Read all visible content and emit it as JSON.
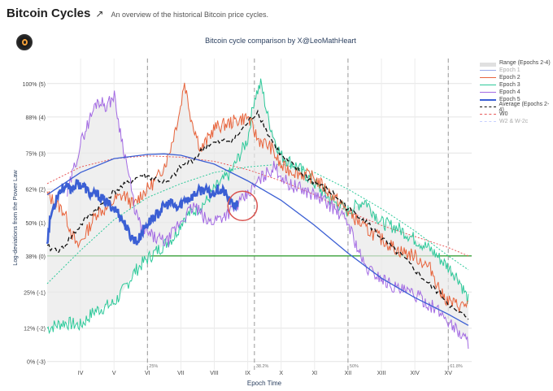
{
  "header": {
    "title": "Bitcoin Cycles",
    "subtitle": "An overview of the historical Bitcoin price cycles.",
    "share_icon": "arrow-up-right-icon"
  },
  "chart_data": {
    "type": "line",
    "title": "Bitcoin cycle comparison by X@LeoMathHeart",
    "xlabel": "Epoch Time",
    "ylabel": "Log-deviations from the Power Law",
    "y_ticks": [
      {
        "value": 0,
        "label": "0% (-3)"
      },
      {
        "value": 12,
        "label": "12% (-2)"
      },
      {
        "value": 25,
        "label": "25% (-1)"
      },
      {
        "value": 38,
        "label": "38% (0)"
      },
      {
        "value": 50,
        "label": "50% (1)"
      },
      {
        "value": 62,
        "label": "62% (2)"
      },
      {
        "value": 75,
        "label": "75% (3)"
      },
      {
        "value": 88,
        "label": "88% (4)"
      },
      {
        "value": 100,
        "label": "100% (5)"
      }
    ],
    "ylim": [
      -3,
      109
    ],
    "xlim": [
      3.0,
      15.7
    ],
    "x_ticks": [
      {
        "value": 4,
        "label": "IV"
      },
      {
        "value": 5,
        "label": "V"
      },
      {
        "value": 6,
        "label": "VI"
      },
      {
        "value": 7,
        "label": "VII"
      },
      {
        "value": 8,
        "label": "VIII"
      },
      {
        "value": 9,
        "label": "IX"
      },
      {
        "value": 10,
        "label": "X"
      },
      {
        "value": 11,
        "label": "XI"
      },
      {
        "value": 12,
        "label": "XII"
      },
      {
        "value": 13,
        "label": "XIII"
      },
      {
        "value": 14,
        "label": "XIV"
      },
      {
        "value": 15,
        "label": "XV"
      }
    ],
    "vlines": [
      {
        "x": 6.0,
        "label": "25%"
      },
      {
        "x": 9.2,
        "label": "38.2%"
      },
      {
        "x": 12.0,
        "label": "50%"
      },
      {
        "x": 15.0,
        "label": "61.8%"
      }
    ],
    "hline": {
      "y": 38,
      "color": "#3aa23a"
    },
    "legend": [
      "Range (Epochs 2-4)",
      "Epoch 1",
      "Epoch 2",
      "Epoch 3",
      "Epoch 4",
      "Epoch 5",
      "Average (Epochs 2-4)",
      "W0",
      "W2 & W-2c"
    ],
    "colors": {
      "epoch1": "#9aa8e8",
      "epoch2": "#e8643c",
      "epoch3": "#2ec99a",
      "epoch4": "#a36ae3",
      "epoch5": "#3b5fd4",
      "average": "#111111",
      "w0": "#e85a5a",
      "w2": "#2ec99a",
      "power_law": "#3b5fd4",
      "annotation_circle": "#d9534f",
      "range_fill": "#e8e8e8"
    },
    "series": [
      {
        "name": "Epoch 2",
        "x": [
          3.0,
          3.5,
          3.9,
          4.2,
          4.5,
          4.8,
          5.0,
          5.3,
          5.6,
          5.8,
          6.0,
          6.3,
          6.6,
          6.8,
          7.0,
          7.1,
          7.3,
          7.6,
          8.0,
          8.5,
          9.0,
          9.3,
          9.7,
          10.0,
          10.5,
          11.0,
          11.5,
          12.0,
          12.5,
          13.0,
          13.5,
          14.0,
          14.5,
          14.8,
          15.1,
          15.4,
          15.6
        ],
        "y": [
          60,
          54,
          41,
          47,
          54,
          55,
          58,
          60,
          56,
          60,
          62,
          66,
          73,
          82,
          92,
          101,
          88,
          76,
          84,
          86,
          88,
          80,
          77,
          70,
          68,
          66,
          60,
          54,
          48,
          44,
          40,
          38,
          33,
          24,
          21,
          20,
          21
        ]
      },
      {
        "name": "Epoch 3",
        "x": [
          3.0,
          3.5,
          4.0,
          4.4,
          4.8,
          5.0,
          5.3,
          5.6,
          5.9,
          6.2,
          6.5,
          6.8,
          7.1,
          7.5,
          7.8,
          8.0,
          8.5,
          9.0,
          9.2,
          9.4,
          9.6,
          9.8,
          10.0,
          10.5,
          11.0,
          11.5,
          12.0,
          12.5,
          13.0,
          13.5,
          14.0,
          14.5,
          15.0,
          15.3,
          15.6
        ],
        "y": [
          12,
          14,
          13,
          18,
          20,
          21,
          26,
          32,
          36,
          39,
          42,
          45,
          52,
          55,
          58,
          62,
          68,
          80,
          95,
          100,
          88,
          80,
          74,
          70,
          64,
          58,
          54,
          58,
          50,
          48,
          44,
          40,
          34,
          30,
          22
        ]
      },
      {
        "name": "Epoch 4",
        "x": [
          3.6,
          3.9,
          4.1,
          4.3,
          4.5,
          4.8,
          5.0,
          5.2,
          5.4,
          5.6,
          5.8,
          6.0,
          6.3,
          6.6,
          6.9,
          7.1,
          7.4,
          7.8,
          8.2,
          8.6,
          9.0,
          9.4,
          9.8,
          10.2,
          10.6,
          11.0,
          11.5,
          12.0,
          12.5,
          13.0,
          13.5,
          14.0,
          14.5,
          14.9,
          15.2,
          15.6
        ],
        "y": [
          60,
          74,
          82,
          88,
          94,
          92,
          96,
          82,
          70,
          56,
          48,
          46,
          44,
          43,
          49,
          52,
          56,
          50,
          52,
          55,
          60,
          66,
          70,
          64,
          62,
          60,
          56,
          50,
          34,
          30,
          26,
          24,
          20,
          16,
          12,
          7
        ]
      },
      {
        "name": "Average (Epochs 2-4)",
        "x": [
          3.0,
          3.4,
          3.8,
          4.2,
          4.6,
          5.0,
          5.4,
          5.8,
          6.2,
          6.6,
          7.0,
          7.4,
          7.8,
          8.2,
          8.6,
          9.0,
          9.3,
          9.6,
          10.0,
          10.4,
          10.8,
          11.2,
          11.6,
          12.0,
          12.4,
          12.8,
          13.2,
          13.6,
          14.0,
          14.4,
          14.8,
          15.2,
          15.6
        ],
        "y": [
          41,
          40,
          46,
          52,
          56,
          61,
          64,
          67,
          66,
          64,
          70,
          73,
          78,
          79,
          80,
          86,
          90,
          82,
          74,
          70,
          66,
          63,
          60,
          55,
          52,
          47,
          42,
          38,
          33,
          28,
          24,
          18,
          16
        ]
      },
      {
        "name": "Epoch 5",
        "x": [
          3.0,
          3.1,
          3.3,
          3.5,
          3.7,
          3.9,
          4.1,
          4.3,
          4.5,
          4.7,
          4.9,
          5.1,
          5.3,
          5.5,
          5.7,
          5.9,
          6.1,
          6.3,
          6.5,
          6.7,
          6.9,
          7.1,
          7.3,
          7.5,
          7.7,
          7.9,
          8.1,
          8.3,
          8.5,
          8.7
        ],
        "y": [
          43,
          52,
          60,
          63,
          62,
          64,
          63,
          60,
          60,
          58,
          56,
          54,
          50,
          45,
          43,
          48,
          51,
          53,
          56,
          57,
          55,
          58,
          59,
          61,
          62,
          60,
          62,
          61,
          57,
          56
        ]
      },
      {
        "name": "W0",
        "x": [
          3.0,
          4.0,
          5.0,
          6.0,
          7.0,
          8.0,
          9.0,
          10.0,
          11.0,
          12.0,
          13.0,
          14.0,
          15.0,
          15.6
        ],
        "y": [
          64,
          70,
          73,
          74,
          73.5,
          72,
          69,
          65,
          60,
          54,
          49,
          45,
          41,
          38
        ]
      },
      {
        "name": "W2 & W-2c",
        "x": [
          3.0,
          4.0,
          5.0,
          6.0,
          7.0,
          8.0,
          9.0,
          10.0,
          11.0,
          12.0,
          13.0,
          14.0,
          15.0,
          15.6
        ],
        "y": [
          28,
          40,
          51,
          59,
          64,
          68,
          70,
          71,
          68,
          62,
          55,
          47,
          38,
          33
        ]
      },
      {
        "name": "Power law curve",
        "x": [
          3.0,
          4.0,
          5.0,
          6.0,
          6.5,
          7.0,
          8.0,
          9.0,
          10.0,
          11.0,
          12.0,
          13.0,
          14.0,
          15.0,
          15.6
        ],
        "y": [
          60,
          68,
          73,
          74.5,
          74.7,
          74.2,
          71,
          65,
          58,
          49,
          39,
          30,
          23,
          17,
          13
        ]
      }
    ],
    "annotation": {
      "type": "circle",
      "x": 8.7,
      "y": 56
    }
  }
}
